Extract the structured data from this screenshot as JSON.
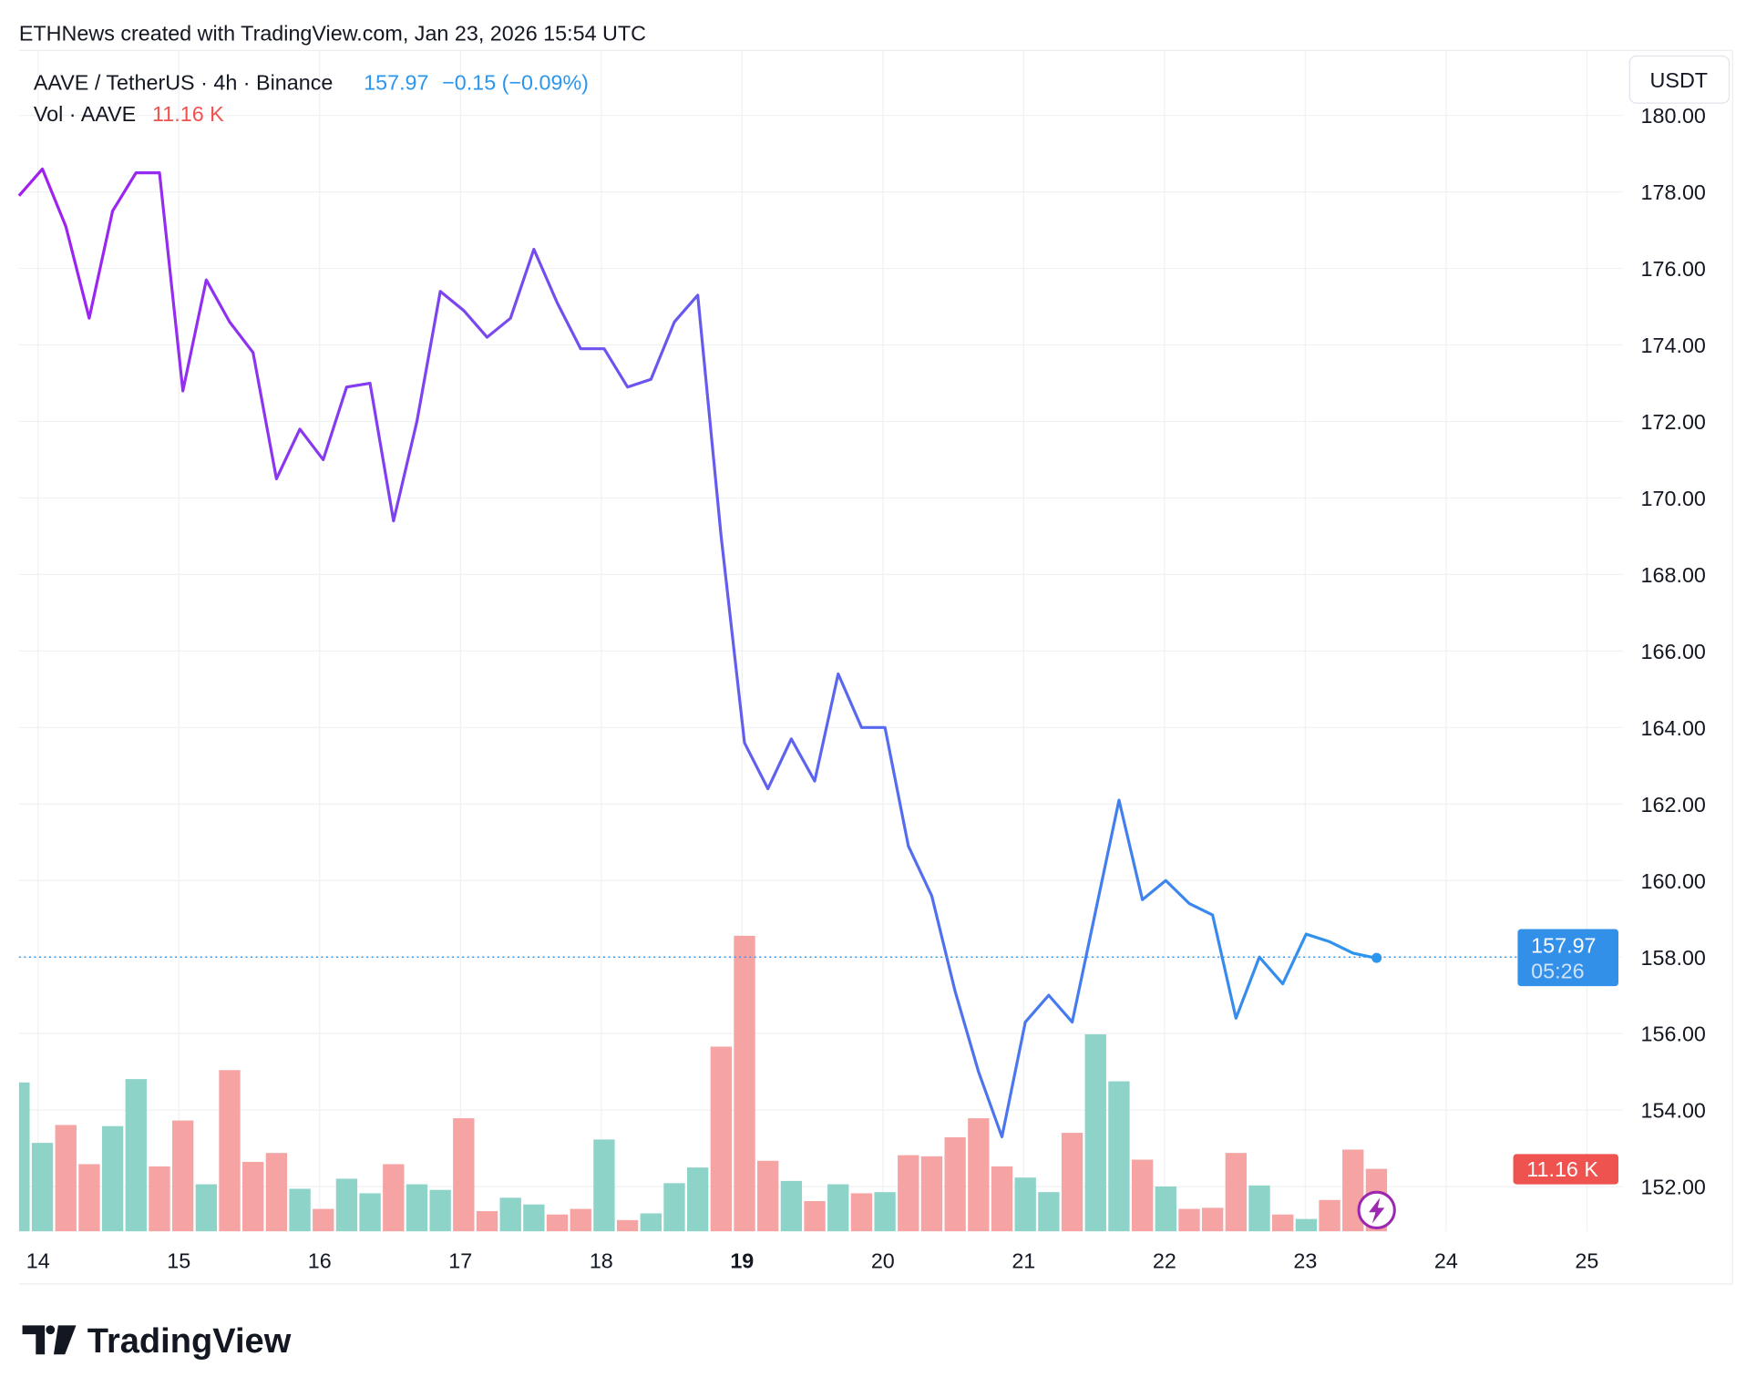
{
  "attribution": "ETHNews created with TradingView.com, Jan 23, 2026 15:54 UTC",
  "legend": {
    "symbol": "AAVE / TetherUS · 4h · Binance",
    "last_price": "157.97",
    "change": "−0.15 (−0.09%)",
    "vol_label": "Vol · AAVE",
    "vol_value": "11.16 K"
  },
  "currency_button": "USDT",
  "price_tag": {
    "price": "157.97",
    "countdown": "05:26"
  },
  "volume_tag": "11.16 K",
  "logo_text": "TradingView",
  "colors": {
    "line_start": "#a11ff0",
    "line_end": "#2b96ee",
    "up": "#8ed3c8",
    "down": "#f5a3a3",
    "price_tag": "#3390e9",
    "vol_tag": "#ef5350"
  },
  "chart_data": {
    "type": "line",
    "title": "AAVE / TetherUS · 4h · Binance",
    "ylabel": "USDT",
    "ylim": [
      151,
      181
    ],
    "y_ticks": [
      "180.00",
      "178.00",
      "176.00",
      "174.00",
      "172.00",
      "170.00",
      "168.00",
      "166.00",
      "164.00",
      "162.00",
      "160.00",
      "158.00",
      "156.00",
      "154.00",
      "152.00"
    ],
    "x_ticks": [
      "14",
      "15",
      "16",
      "17",
      "18",
      "19",
      "20",
      "21",
      "22",
      "23",
      "24",
      "25"
    ],
    "x_ticks_bold": [
      "19"
    ],
    "interval": "4h",
    "series": [
      {
        "name": "AAVE price",
        "values": [
          177.9,
          178.6,
          177.1,
          174.7,
          177.5,
          178.5,
          178.5,
          172.8,
          175.7,
          174.6,
          173.8,
          170.5,
          171.8,
          171.0,
          172.9,
          173.0,
          169.4,
          172.0,
          175.4,
          174.9,
          174.2,
          174.7,
          176.5,
          175.1,
          173.9,
          173.9,
          172.9,
          173.1,
          174.6,
          175.3,
          169.0,
          163.6,
          162.4,
          163.7,
          162.6,
          165.4,
          164.0,
          164.0,
          160.9,
          159.6,
          157.1,
          155.0,
          153.3,
          156.3,
          157.0,
          156.3,
          159.2,
          162.1,
          159.5,
          160.0,
          159.4,
          159.1,
          156.4,
          158.0,
          157.3,
          158.6,
          158.4,
          158.1,
          157.97
        ]
      },
      {
        "name": "Vol · AAVE (K)",
        "values": [
          26.6,
          15.8,
          19,
          12,
          18.8,
          27.2,
          11.6,
          19.8,
          8.4,
          28.8,
          12.4,
          14,
          7.6,
          4,
          9.4,
          6.8,
          12,
          8.4,
          7.4,
          20.2,
          3.6,
          6,
          4.8,
          3,
          4,
          16.4,
          2,
          3.2,
          8.6,
          11.4,
          33,
          52.8,
          12.6,
          9,
          5.4,
          8.4,
          6.8,
          7,
          13.6,
          13.4,
          16.8,
          20.2,
          11.6,
          9.6,
          7,
          17.6,
          35.2,
          26.8,
          12.8,
          8,
          4,
          4.2,
          14,
          8.2,
          3,
          2.2,
          5.6,
          14.6,
          11.16
        ],
        "direction": [
          "up",
          "up",
          "down",
          "down",
          "up",
          "up",
          "down",
          "down",
          "up",
          "down",
          "down",
          "down",
          "up",
          "down",
          "up",
          "up",
          "down",
          "up",
          "up",
          "down",
          "down",
          "up",
          "up",
          "down",
          "down",
          "up",
          "down",
          "up",
          "up",
          "up",
          "down",
          "down",
          "down",
          "up",
          "down",
          "up",
          "down",
          "up",
          "down",
          "down",
          "down",
          "down",
          "down",
          "up",
          "up",
          "down",
          "up",
          "up",
          "down",
          "up",
          "down",
          "down",
          "down",
          "up",
          "down",
          "up",
          "down",
          "down",
          "down"
        ]
      }
    ],
    "grid": true,
    "legend_position": "top-left"
  }
}
